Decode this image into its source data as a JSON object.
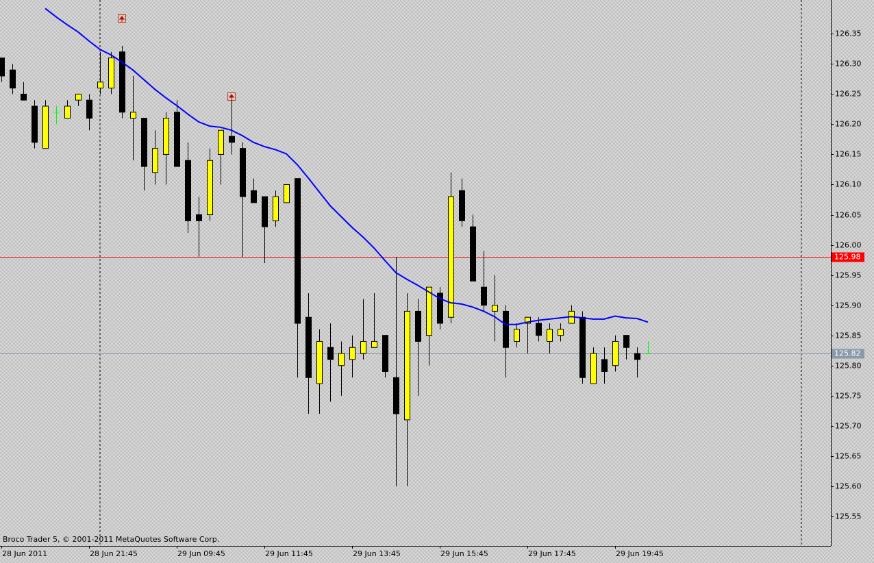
{
  "chart_data": {
    "type": "candlestick",
    "footer": "Broco Trader 5, © 2001-2011 MetaQuotes Software Corp.",
    "categories": [
      "28 Jun 2011",
      null,
      null,
      null,
      null,
      null,
      null,
      null,
      "28 Jun 21:45",
      null,
      null,
      null,
      null,
      null,
      null,
      null,
      "29 Jun 09:45",
      null,
      null,
      null,
      null,
      null,
      null,
      null,
      "29 Jun 11:45",
      null,
      null,
      null,
      null,
      null,
      null,
      null,
      "29 Jun 13:45",
      null,
      null,
      null,
      null,
      null,
      null,
      null,
      "29 Jun 15:45",
      null,
      null,
      null,
      null,
      null,
      null,
      null,
      "29 Jun 17:45",
      null,
      null,
      null,
      null,
      null,
      null,
      null,
      "29 Jun 19:45",
      null,
      null,
      null
    ],
    "open": [
      126.31,
      126.29,
      126.25,
      126.23,
      126.16,
      126.22,
      126.21,
      126.24,
      126.24,
      126.26,
      126.26,
      126.32,
      126.21,
      126.21,
      126.12,
      126.15,
      126.22,
      126.14,
      126.05,
      126.05,
      126.15,
      126.18,
      126.16,
      126.09,
      126.08,
      126.04,
      126.07,
      126.11,
      125.88,
      125.77,
      125.83,
      125.8,
      125.81,
      125.82,
      125.83,
      125.85,
      125.78,
      125.71,
      125.89,
      125.85,
      125.92,
      125.88,
      126.09,
      126.03,
      125.93,
      125.89,
      125.89,
      125.84,
      125.87,
      125.87,
      125.84,
      125.85,
      125.87,
      125.88,
      125.77,
      125.81,
      125.8,
      125.85,
      125.82,
      125.82
    ],
    "high": [
      126.31,
      126.3,
      126.27,
      126.24,
      126.24,
      126.23,
      126.24,
      126.25,
      126.25,
      126.32,
      126.32,
      126.33,
      126.28,
      126.21,
      126.19,
      126.22,
      126.24,
      126.17,
      126.08,
      126.16,
      126.19,
      126.24,
      126.17,
      126.11,
      126.08,
      126.09,
      126.1,
      126.11,
      125.92,
      125.86,
      125.87,
      125.84,
      125.85,
      125.91,
      125.92,
      125.85,
      125.98,
      125.92,
      125.91,
      125.93,
      125.93,
      126.12,
      126.11,
      126.05,
      125.99,
      125.95,
      125.9,
      125.87,
      125.88,
      125.88,
      125.87,
      125.87,
      125.9,
      125.89,
      125.83,
      125.83,
      125.85,
      125.85,
      125.83,
      125.84
    ],
    "low": [
      126.27,
      126.25,
      126.24,
      126.16,
      126.16,
      126.2,
      126.21,
      126.23,
      126.19,
      126.25,
      126.25,
      126.21,
      126.14,
      126.09,
      126.1,
      126.1,
      126.13,
      126.02,
      125.98,
      126.04,
      126.1,
      126.15,
      125.98,
      126.07,
      125.97,
      126.03,
      126.07,
      125.78,
      125.72,
      125.72,
      125.74,
      125.75,
      125.78,
      125.81,
      125.83,
      125.78,
      125.6,
      125.6,
      125.75,
      125.8,
      125.86,
      125.87,
      126.03,
      125.94,
      125.89,
      125.84,
      125.78,
      125.83,
      125.82,
      125.84,
      125.82,
      125.84,
      125.87,
      125.77,
      125.77,
      125.77,
      125.79,
      125.81,
      125.78,
      125.82
    ],
    "close": [
      126.28,
      126.26,
      126.24,
      126.17,
      126.23,
      126.22,
      126.23,
      126.25,
      126.21,
      126.27,
      126.31,
      126.22,
      126.22,
      126.13,
      126.16,
      126.21,
      126.13,
      126.04,
      126.04,
      126.14,
      126.19,
      126.17,
      126.08,
      126.07,
      126.03,
      126.08,
      126.1,
      125.87,
      125.78,
      125.84,
      125.81,
      125.82,
      125.83,
      125.84,
      125.84,
      125.79,
      125.72,
      125.89,
      125.84,
      125.93,
      125.87,
      126.08,
      126.04,
      125.94,
      125.9,
      125.9,
      125.83,
      125.86,
      125.88,
      125.85,
      125.86,
      125.86,
      125.89,
      125.78,
      125.82,
      125.79,
      125.84,
      125.83,
      125.81,
      125.82
    ],
    "up_color": "#ffff00",
    "down_color": "#000000",
    "doji_color": "#00ff00",
    "moving_average": {
      "color": "#0000ff",
      "values": [
        null,
        null,
        null,
        null,
        126.392,
        126.378,
        126.365,
        126.353,
        126.338,
        126.324,
        126.315,
        126.303,
        126.29,
        126.274,
        126.258,
        126.244,
        126.231,
        126.217,
        126.204,
        126.197,
        126.195,
        126.19,
        126.181,
        126.17,
        126.163,
        126.158,
        126.151,
        126.133,
        126.111,
        126.088,
        126.065,
        126.047,
        126.029,
        126.013,
        125.995,
        125.974,
        125.954,
        125.943,
        125.933,
        125.922,
        125.911,
        125.904,
        125.902,
        125.897,
        125.89,
        125.881,
        125.868,
        125.868,
        125.872,
        125.875,
        125.877,
        125.879,
        125.881,
        125.879,
        125.877,
        125.877,
        125.882,
        125.879,
        125.878,
        125.872
      ]
    },
    "price_lines": [
      {
        "value": 125.98,
        "color": "#ff0000"
      },
      {
        "value": 125.82,
        "color": "#8a9aaa"
      }
    ],
    "ylim": [
      125.501,
      126.406
    ],
    "yticks": [
      125.55,
      {
        "value": 125.6,
        "label": "125.60"
      },
      125.65,
      {
        "value": 125.7,
        "label": "125.70"
      },
      125.75,
      {
        "value": 125.8,
        "label": "125.80"
      },
      125.85,
      {
        "value": 125.9,
        "label": "125.90"
      },
      125.95,
      {
        "value": 126.0,
        "label": "126.00"
      },
      126.05,
      {
        "value": 126.1,
        "label": "126.10"
      },
      126.15,
      {
        "value": 126.2,
        "label": "126.20"
      },
      126.25,
      {
        "value": 126.3,
        "label": "126.30"
      },
      126.35
    ]
  }
}
